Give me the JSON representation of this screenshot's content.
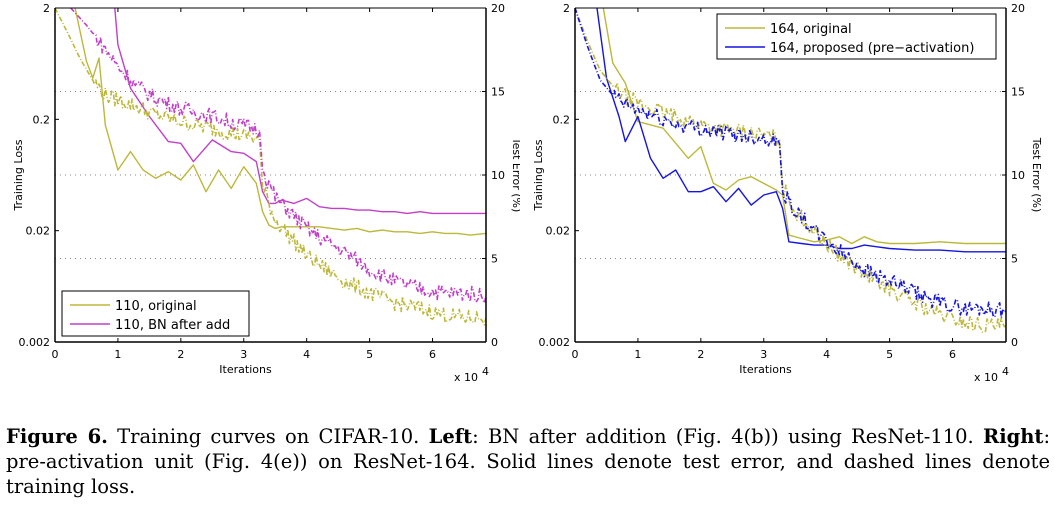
{
  "chart_data": [
    {
      "type": "line",
      "panel": "left",
      "xlabel": "Iterations",
      "x_multiplier_label": "x 10",
      "x_multiplier_exp": "4",
      "ylabel_left": "Training Loss",
      "ylabel_right": "Test Error (%)",
      "xlim": [
        0,
        6.85
      ],
      "ylim_left": [
        0.002,
        2
      ],
      "ylim_right": [
        0,
        20
      ],
      "y_left_scale": "log",
      "x_ticks": [
        "0",
        "1",
        "2",
        "3",
        "4",
        "5",
        "6"
      ],
      "y_left_ticks": [
        "2",
        "0.2",
        "0.02",
        "0.002"
      ],
      "y_right_ticks": [
        "20",
        "15",
        "10",
        "5",
        "0"
      ],
      "grid": "dotted horizontal at right-axis ticks 5, 10, 15",
      "legend_position": "bottom-left",
      "legend": [
        "110, original",
        "110, BN after add"
      ],
      "series": [
        {
          "name": "110, original",
          "color": "#BDB83A",
          "metric": "test_error",
          "style": "solid",
          "x": [
            0.32,
            0.5,
            0.6,
            0.7,
            0.8,
            1.0,
            1.2,
            1.4,
            1.6,
            1.8,
            2.0,
            2.2,
            2.4,
            2.6,
            2.8,
            3.0,
            3.2,
            3.3,
            3.4,
            3.5,
            3.6,
            4.0,
            4.2,
            4.4,
            4.6,
            4.8,
            5.0,
            5.2,
            5.4,
            5.6,
            5.8,
            6.0,
            6.2,
            6.4,
            6.6,
            6.85
          ],
          "values": [
            20.0,
            16.8,
            15.8,
            17.0,
            13.0,
            10.3,
            11.4,
            10.3,
            9.8,
            10.2,
            9.7,
            10.6,
            9.0,
            10.3,
            9.2,
            10.5,
            9.5,
            7.8,
            7.0,
            6.8,
            6.9,
            6.9,
            6.9,
            6.8,
            6.7,
            6.8,
            6.6,
            6.7,
            6.6,
            6.6,
            6.5,
            6.6,
            6.5,
            6.5,
            6.4,
            6.5
          ]
        },
        {
          "name": "110, BN after add",
          "color": "#C040C8",
          "metric": "test_error",
          "style": "solid",
          "x": [
            0.95,
            1.0,
            1.2,
            1.5,
            1.8,
            2.0,
            2.2,
            2.5,
            2.8,
            3.0,
            3.2,
            3.3,
            3.4,
            3.5,
            3.6,
            3.8,
            4.0,
            4.2,
            4.4,
            4.6,
            4.8,
            5.0,
            5.2,
            5.4,
            5.6,
            5.8,
            6.0,
            6.2,
            6.4,
            6.6,
            6.85
          ],
          "values": [
            20.0,
            17.8,
            15.2,
            13.5,
            12.0,
            11.9,
            10.8,
            12.1,
            11.4,
            11.3,
            10.8,
            9.0,
            8.3,
            8.3,
            8.5,
            8.3,
            8.6,
            8.1,
            8.0,
            8.0,
            7.9,
            7.9,
            7.8,
            7.8,
            7.7,
            7.8,
            7.7,
            7.7,
            7.7,
            7.7,
            7.7
          ]
        },
        {
          "name": "110, original",
          "color": "#BDB83A",
          "metric": "training_loss",
          "style": "dashed",
          "x": [
            0.0,
            0.2,
            0.4,
            0.6,
            0.8,
            1.0,
            1.3,
            1.6,
            2.0,
            2.4,
            2.8,
            3.1,
            3.25,
            3.3,
            3.5,
            3.8,
            4.0,
            4.3,
            4.6,
            5.0,
            5.4,
            5.8,
            6.2,
            6.5,
            6.85
          ],
          "values": [
            2.0,
            1.2,
            0.7,
            0.45,
            0.33,
            0.3,
            0.26,
            0.22,
            0.19,
            0.17,
            0.15,
            0.14,
            0.13,
            0.05,
            0.025,
            0.016,
            0.012,
            0.009,
            0.007,
            0.0055,
            0.0045,
            0.004,
            0.0035,
            0.0033,
            0.0033
          ]
        },
        {
          "name": "110, BN after add",
          "color": "#C040C8",
          "metric": "training_loss",
          "style": "dashed",
          "x": [
            0.25,
            0.5,
            0.8,
            1.0,
            1.3,
            1.6,
            2.0,
            2.4,
            2.8,
            3.1,
            3.25,
            3.3,
            3.5,
            3.8,
            4.0,
            4.3,
            4.6,
            5.0,
            5.4,
            5.8,
            6.2,
            6.5,
            6.85
          ],
          "values": [
            2.0,
            1.4,
            0.85,
            0.6,
            0.4,
            0.31,
            0.25,
            0.22,
            0.19,
            0.17,
            0.16,
            0.07,
            0.04,
            0.027,
            0.021,
            0.016,
            0.013,
            0.009,
            0.007,
            0.006,
            0.0055,
            0.0055,
            0.0052
          ]
        }
      ]
    },
    {
      "type": "line",
      "panel": "right",
      "xlabel": "Iterations",
      "x_multiplier_label": "x 10",
      "x_multiplier_exp": "4",
      "ylabel_left": "Training Loss",
      "ylabel_right": "Test Error (%)",
      "xlim": [
        0,
        6.85
      ],
      "ylim_left": [
        0.002,
        2
      ],
      "ylim_right": [
        0,
        20
      ],
      "y_left_scale": "log",
      "x_ticks": [
        "0",
        "1",
        "2",
        "3",
        "4",
        "5",
        "6"
      ],
      "y_left_ticks": [
        "2",
        "0.2",
        "0.02",
        "0.002"
      ],
      "y_right_ticks": [
        "20",
        "15",
        "10",
        "5",
        "0"
      ],
      "grid": "dotted horizontal at right-axis ticks 5, 10, 15",
      "legend_position": "top-right",
      "legend": [
        "164, original",
        "164, proposed (pre−activation)"
      ],
      "series": [
        {
          "name": "164, original",
          "color": "#BDB83A",
          "metric": "test_error",
          "style": "solid",
          "x": [
            0.45,
            0.6,
            0.8,
            1.0,
            1.4,
            1.8,
            2.0,
            2.2,
            2.4,
            2.6,
            2.8,
            3.2,
            3.3,
            3.4,
            3.6,
            3.8,
            4.0,
            4.2,
            4.4,
            4.6,
            4.8,
            5.0,
            5.4,
            5.8,
            6.2,
            6.6,
            6.85
          ],
          "values": [
            20.0,
            16.7,
            15.5,
            13.2,
            12.8,
            11.0,
            11.7,
            9.5,
            9.1,
            9.7,
            9.9,
            9.1,
            8.8,
            6.4,
            6.2,
            6.0,
            6.1,
            6.3,
            5.9,
            6.3,
            6.0,
            5.9,
            5.9,
            6.0,
            5.9,
            5.9,
            5.9
          ]
        },
        {
          "name": "164, proposed (pre−activation)",
          "color": "#1515E0",
          "metric": "test_error",
          "style": "solid",
          "x": [
            0.35,
            0.5,
            0.7,
            0.8,
            1.0,
            1.2,
            1.4,
            1.6,
            1.8,
            2.0,
            2.2,
            2.4,
            2.6,
            2.8,
            3.0,
            3.2,
            3.3,
            3.4,
            3.6,
            3.8,
            4.0,
            4.2,
            4.4,
            4.6,
            4.8,
            5.0,
            5.4,
            5.8,
            6.2,
            6.6,
            6.85
          ],
          "values": [
            20.0,
            15.8,
            13.5,
            12.0,
            13.5,
            11.0,
            9.8,
            10.3,
            9.0,
            9.0,
            9.3,
            8.4,
            9.2,
            8.2,
            8.8,
            9.0,
            8.0,
            6.0,
            5.9,
            5.8,
            5.8,
            5.6,
            5.6,
            5.8,
            5.7,
            5.6,
            5.5,
            5.5,
            5.4,
            5.4,
            5.4
          ]
        },
        {
          "name": "164, original",
          "color": "#BDB83A",
          "metric": "training_loss",
          "style": "dashed",
          "x": [
            0.0,
            0.2,
            0.4,
            0.6,
            0.8,
            1.0,
            1.3,
            1.6,
            2.0,
            2.4,
            2.8,
            3.1,
            3.25,
            3.3,
            3.5,
            3.8,
            4.0,
            4.3,
            4.6,
            5.0,
            5.4,
            5.8,
            6.2,
            6.5,
            6.85
          ],
          "values": [
            2.0,
            1.0,
            0.55,
            0.4,
            0.32,
            0.28,
            0.24,
            0.21,
            0.18,
            0.16,
            0.15,
            0.14,
            0.13,
            0.05,
            0.03,
            0.02,
            0.015,
            0.011,
            0.008,
            0.006,
            0.0045,
            0.0035,
            0.003,
            0.0028,
            0.0028
          ]
        },
        {
          "name": "164, proposed (pre−activation)",
          "color": "#1515E0",
          "metric": "training_loss",
          "style": "dashed",
          "x": [
            0.0,
            0.2,
            0.4,
            0.6,
            0.8,
            1.0,
            1.3,
            1.6,
            2.0,
            2.4,
            2.8,
            3.1,
            3.25,
            3.3,
            3.5,
            3.8,
            4.0,
            4.3,
            4.6,
            5.0,
            5.4,
            5.8,
            6.2,
            6.5,
            6.85
          ],
          "values": [
            2.0,
            0.9,
            0.45,
            0.33,
            0.27,
            0.24,
            0.21,
            0.18,
            0.165,
            0.15,
            0.14,
            0.135,
            0.12,
            0.045,
            0.03,
            0.02,
            0.016,
            0.012,
            0.009,
            0.007,
            0.0055,
            0.0045,
            0.004,
            0.004,
            0.0038
          ]
        }
      ]
    }
  ],
  "caption": {
    "figure_label": "Figure 6.",
    "text_1": " Training curves on CIFAR-10. ",
    "left_label": "Left",
    "text_2": ": BN after addition (Fig. 4(b)) using ResNet-110. ",
    "right_label": "Right",
    "text_3": ": pre-activation unit (Fig. 4(e)) on ResNet-164. Solid lines denote test error, and dashed lines denote training loss."
  }
}
